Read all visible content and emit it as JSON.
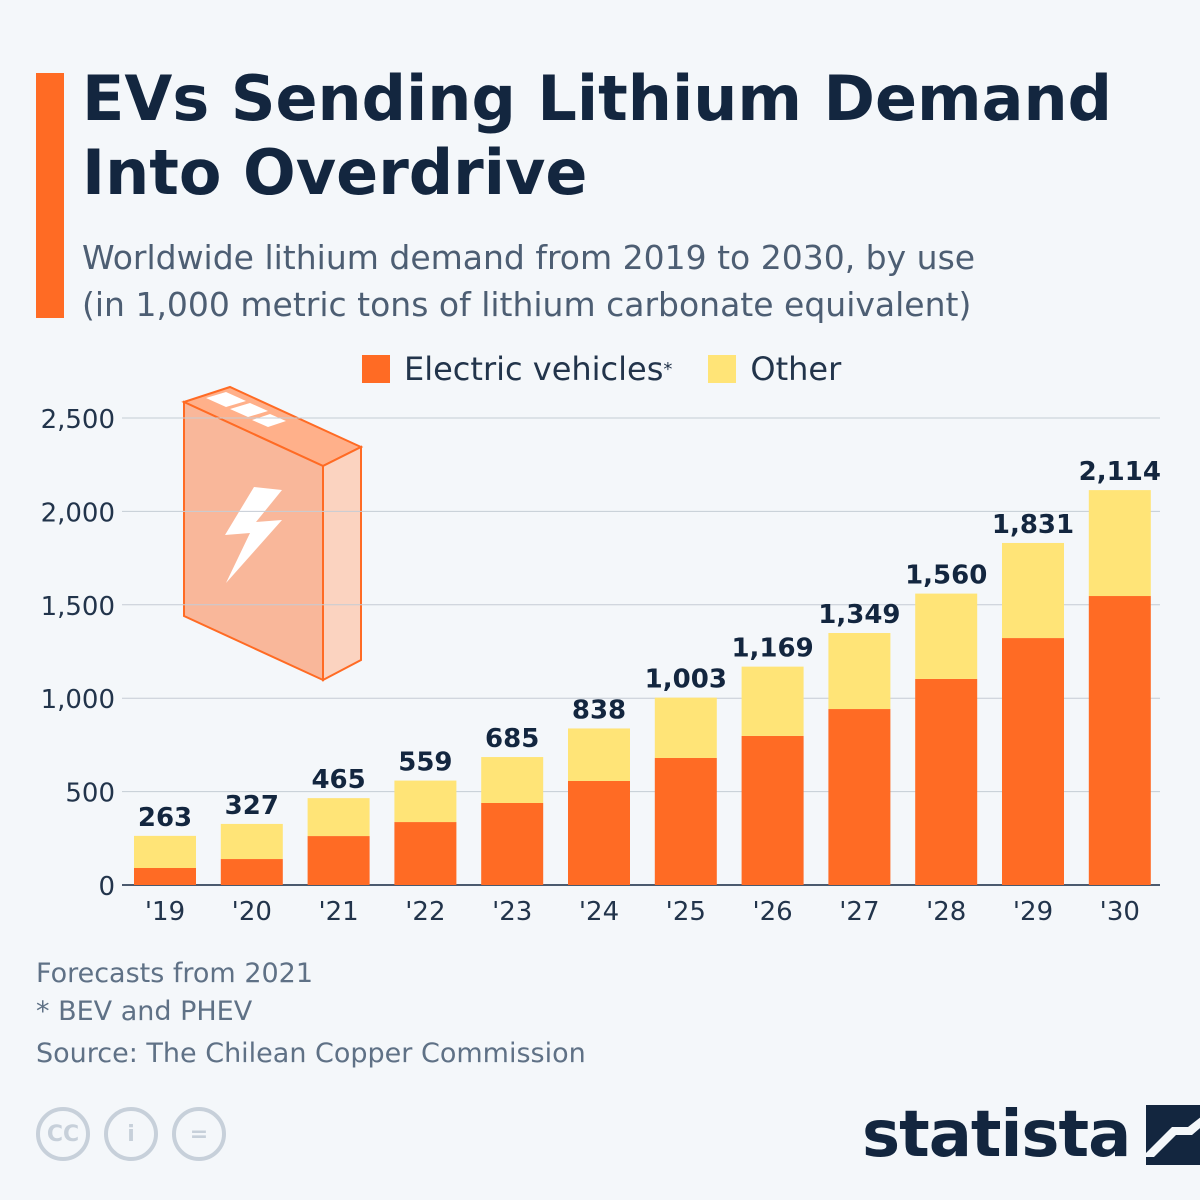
{
  "header": {
    "title": "EVs Sending Lithium Demand Into Overdrive",
    "subtitle_line1": "Worldwide lithium demand from 2019 to 2030, by use",
    "subtitle_line2": "(in 1,000 metric tons of lithium carbonate equivalent)"
  },
  "colors": {
    "accent": "#ff6b24",
    "ev": "#ff6b24",
    "other": "#ffe477",
    "text": "#13263f"
  },
  "chart_data": {
    "type": "bar",
    "stacked": true,
    "title": "",
    "xlabel": "",
    "ylabel": "",
    "categories": [
      "'19",
      "'20",
      "'21",
      "'22",
      "'23",
      "'24",
      "'25",
      "'26",
      "'27",
      "'28",
      "'29",
      "'30"
    ],
    "series": [
      {
        "name": "Electric vehicles",
        "values": [
          91,
          139,
          262,
          337,
          439,
          557,
          680,
          798,
          942,
          1103,
          1322,
          1547
        ],
        "color": "#ff6b24"
      },
      {
        "name": "Other",
        "values": [
          172,
          188,
          203,
          222,
          246,
          281,
          323,
          371,
          407,
          457,
          509,
          567
        ],
        "color": "#ffe477"
      }
    ],
    "totals": [
      "263",
      "327",
      "465",
      "559",
      "685",
      "838",
      "1,003",
      "1,169",
      "1,349",
      "1,560",
      "1,831",
      "2,114"
    ],
    "ylim": [
      0,
      2500
    ],
    "yticks": [
      "0",
      "500",
      "1,000",
      "1,500",
      "2,000",
      "2,500"
    ],
    "grid": true,
    "legend": "top"
  },
  "legend": {
    "ev": "Electric vehicles",
    "ev_mark": "*",
    "other": "Other"
  },
  "notes": {
    "forecast": "Forecasts from 2021",
    "footnote": "* BEV and PHEV",
    "source": "Source: The Chilean Copper Commission"
  },
  "license_icons": {
    "cc": "CC",
    "by": "i",
    "nd": "="
  },
  "brand": {
    "logo": "statista"
  }
}
